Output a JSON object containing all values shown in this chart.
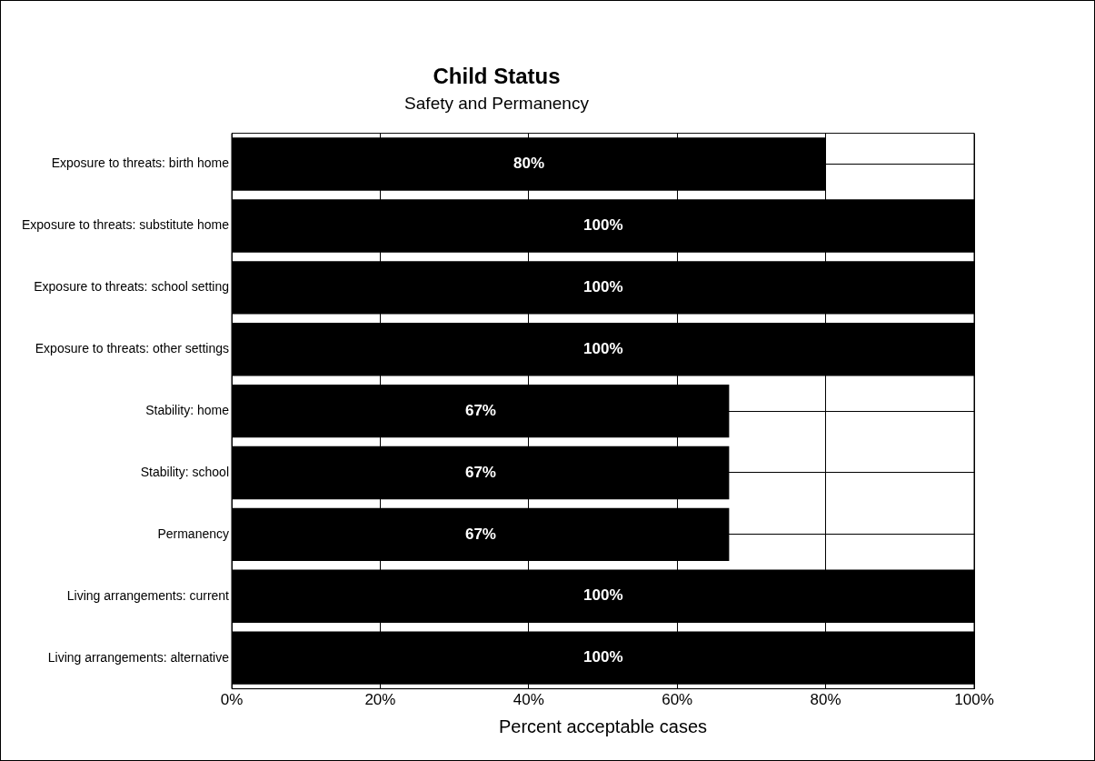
{
  "chart_data": {
    "type": "bar",
    "orientation": "horizontal",
    "title": "Child Status",
    "subtitle": "Safety and Permanency",
    "xlabel": "Percent acceptable cases",
    "categories": [
      "Exposure to threats: birth home",
      "Exposure to threats: substitute home",
      "Exposure to threats: school setting",
      "Exposure to threats: other settings",
      "Stability: home",
      "Stability: school",
      "Permanency",
      "Living arrangements: current",
      "Living arrangements: alternative"
    ],
    "values": [
      80,
      100,
      100,
      100,
      67,
      67,
      67,
      100,
      100
    ],
    "value_labels": [
      "80%",
      "100%",
      "100%",
      "100%",
      "67%",
      "67%",
      "67%",
      "100%",
      "100%"
    ],
    "color": "#000000",
    "xlim": [
      0,
      100
    ],
    "xticks": [
      {
        "value": 0,
        "label": "0%"
      },
      {
        "value": 20,
        "label": "20%"
      },
      {
        "value": 40,
        "label": "40%"
      },
      {
        "value": 60,
        "label": "60%"
      },
      {
        "value": 80,
        "label": "80%"
      },
      {
        "value": 100,
        "label": "100%"
      }
    ],
    "grid": true,
    "legend": false
  }
}
